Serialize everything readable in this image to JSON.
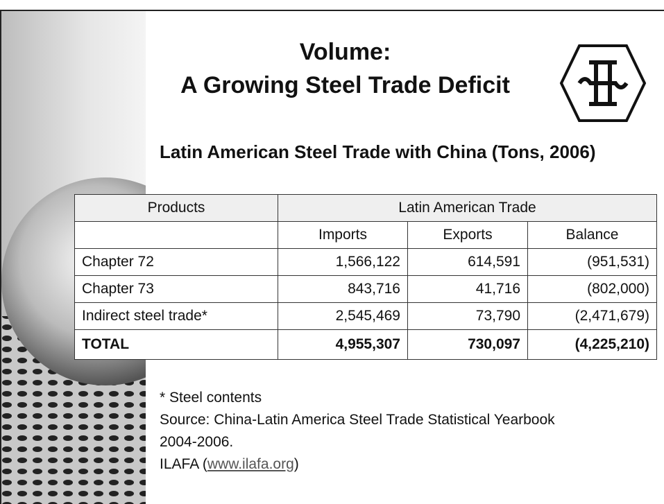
{
  "slide": {
    "title_lines": [
      "Volume:",
      "A Growing Steel Trade Deficit"
    ],
    "subtitle": "Latin American Steel Trade with China (Tons, 2006)",
    "table": {
      "header": {
        "products": "Products",
        "group": "Latin American Trade",
        "columns": [
          "Imports",
          "Exports",
          "Balance"
        ]
      },
      "rows": [
        [
          "Chapter 72",
          "1,566,122",
          "614,591",
          "(951,531)"
        ],
        [
          "Chapter 73",
          "843,716",
          "41,716",
          "(802,000)"
        ],
        [
          "Indirect steel trade*",
          "2,545,469",
          "73,790",
          "(2,471,679)"
        ]
      ],
      "total": [
        "TOTAL",
        "4,955,307",
        "730,097",
        "(4,225,210)"
      ]
    },
    "notes": {
      "footnote": "* Steel contents",
      "source_lines": [
        "Source: China-Latin America Steel Trade Statistical Yearbook",
        "2004-2006."
      ],
      "credit_prefix": "ILAFA (",
      "credit_link": "www.ilafa.org",
      "credit_suffix": ")"
    }
  }
}
